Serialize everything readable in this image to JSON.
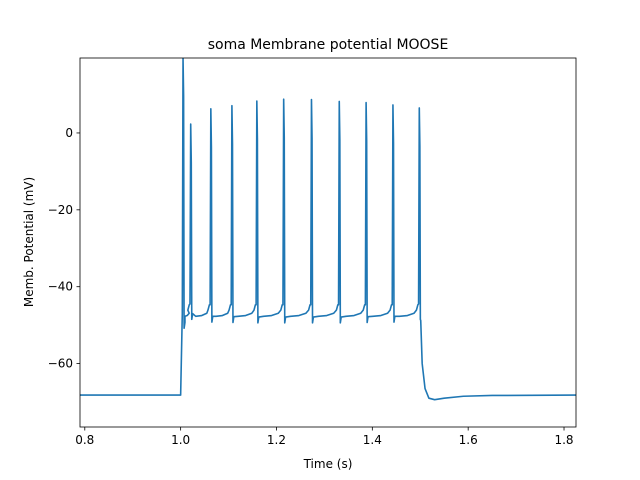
{
  "chart_data": {
    "type": "line",
    "title": "soma Membrane potential MOOSE",
    "xlabel": "Time (s)",
    "ylabel": "Memb. Potential (mV)",
    "xlim": [
      0.79,
      1.825
    ],
    "ylim": [
      -76.5,
      19.5
    ],
    "xticks": [
      0.8,
      1.0,
      1.2,
      1.4,
      1.6,
      1.8
    ],
    "xtick_labels": [
      "0.8",
      "1.0",
      "1.2",
      "1.4",
      "1.6",
      "1.8"
    ],
    "yticks": [
      -60,
      -40,
      -20,
      0
    ],
    "ytick_labels": [
      "−60",
      "−40",
      "−20",
      "0"
    ],
    "grid": false,
    "line_color": "#1f77b4",
    "resting_potential": -68.2,
    "stimulus_window": [
      1.0,
      1.5
    ],
    "spikes": [
      {
        "t": 1.005,
        "peak": 19.5,
        "trough": -50.8
      },
      {
        "t": 1.021,
        "peak": 2.3,
        "trough": -48.5
      },
      {
        "t": 1.063,
        "peak": 6.3,
        "trough": -49.2
      },
      {
        "t": 1.107,
        "peak": 7.1,
        "trough": -49.3
      },
      {
        "t": 1.159,
        "peak": 8.3,
        "trough": -49.4
      },
      {
        "t": 1.215,
        "peak": 8.8,
        "trough": -49.4
      },
      {
        "t": 1.273,
        "peak": 8.7,
        "trough": -49.4
      },
      {
        "t": 1.331,
        "peak": 8.2,
        "trough": -49.4
      },
      {
        "t": 1.387,
        "peak": 7.9,
        "trough": -49.3
      },
      {
        "t": 1.443,
        "peak": 7.3,
        "trough": -49.2
      },
      {
        "t": 1.498,
        "peak": 6.5,
        "trough": -48.5
      }
    ],
    "interspike_min": -47.7,
    "post_stimulus": {
      "drop_to": -69.4,
      "at": 1.53,
      "recover_to": -68.2
    }
  }
}
